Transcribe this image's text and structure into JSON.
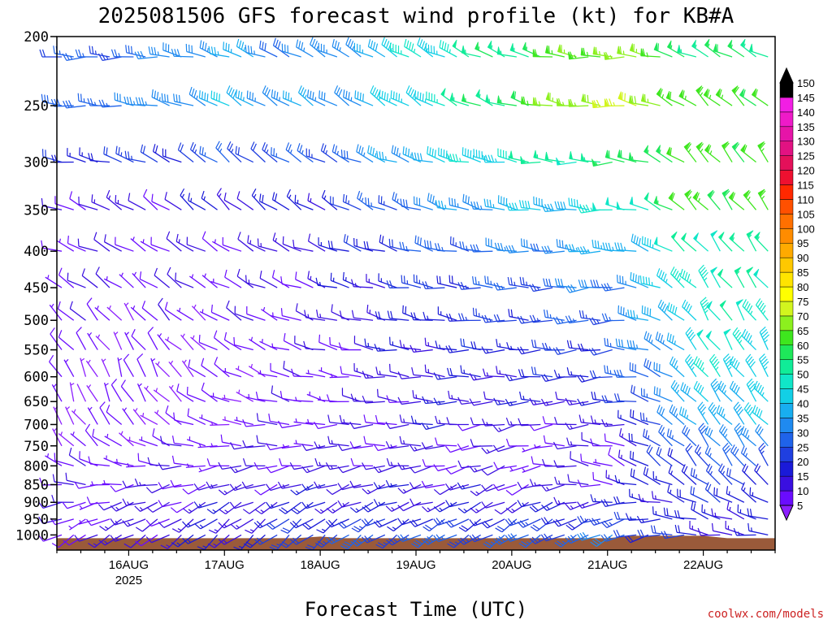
{
  "chart_data": {
    "type": "wind-barb-time-height",
    "title": "2025081506 GFS forecast wind profile (kt) for KB#A",
    "xlabel": "Forecast Time (UTC)",
    "ylabel": "",
    "credit": "coolwx.com/models",
    "x_ticks": [
      {
        "label": "16AUG",
        "sub": "2025",
        "hours": 18
      },
      {
        "label": "17AUG",
        "sub": "",
        "hours": 42
      },
      {
        "label": "18AUG",
        "sub": "",
        "hours": 66
      },
      {
        "label": "19AUG",
        "sub": "",
        "hours": 90
      },
      {
        "label": "20AUG",
        "sub": "",
        "hours": 114
      },
      {
        "label": "21AUG",
        "sub": "",
        "hours": 138
      },
      {
        "label": "22AUG",
        "sub": "",
        "hours": 162
      }
    ],
    "x_range_hours": [
      0,
      180
    ],
    "x_step_hours": 3,
    "pressure_levels": [
      200,
      250,
      300,
      350,
      400,
      450,
      500,
      550,
      600,
      650,
      700,
      750,
      800,
      850,
      900,
      950,
      1000
    ],
    "y_axis": {
      "scale": "log",
      "top": 200,
      "bottom": 1050,
      "reversed": true
    },
    "colorbar": {
      "levels": [
        5,
        10,
        15,
        20,
        25,
        30,
        35,
        40,
        45,
        50,
        55,
        60,
        65,
        70,
        75,
        80,
        85,
        90,
        95,
        100,
        105,
        110,
        115,
        120,
        125,
        130,
        135,
        140,
        145,
        150
      ],
      "colors": [
        "#8c1fff",
        "#6a0cff",
        "#3a0fe0",
        "#1a1ad8",
        "#1f3fe0",
        "#1f63ea",
        "#1f8af0",
        "#18aef0",
        "#12cfe6",
        "#10e6c8",
        "#10ec98",
        "#1ee85a",
        "#3ee61e",
        "#8cf01e",
        "#d2f51e",
        "#ffff00",
        "#ffe400",
        "#ffc800",
        "#ffaa00",
        "#ff8c00",
        "#ff7000",
        "#ff5000",
        "#ff2800",
        "#ee1030",
        "#e4105a",
        "#e21282",
        "#e614a8",
        "#ee1ac8",
        "#f21ee4",
        "#000000"
      ]
    },
    "wind_profile": [
      {
        "day": "15AUG-06",
        "speeds": [
          22,
          25,
          18,
          12,
          10,
          9,
          8,
          7,
          6,
          5,
          6,
          6,
          7,
          8,
          9,
          9,
          10
        ],
        "dirs": [
          270,
          270,
          280,
          290,
          290,
          300,
          310,
          320,
          330,
          340,
          330,
          320,
          300,
          280,
          260,
          250,
          240
        ]
      },
      {
        "day": "16AUG",
        "speeds": [
          28,
          30,
          20,
          12,
          9,
          8,
          7,
          6,
          6,
          6,
          6,
          7,
          8,
          10,
          11,
          11,
          12
        ],
        "dirs": [
          270,
          275,
          290,
          300,
          300,
          310,
          320,
          330,
          340,
          330,
          320,
          300,
          280,
          260,
          250,
          245,
          240
        ]
      },
      {
        "day": "17AUG",
        "speeds": [
          35,
          38,
          24,
          14,
          10,
          9,
          8,
          7,
          7,
          7,
          7,
          8,
          9,
          11,
          13,
          14,
          15
        ],
        "dirs": [
          290,
          300,
          310,
          310,
          300,
          300,
          300,
          300,
          300,
          290,
          280,
          270,
          260,
          250,
          240,
          235,
          230
        ]
      },
      {
        "day": "18AUG",
        "speeds": [
          30,
          32,
          24,
          17,
          14,
          12,
          10,
          9,
          8,
          8,
          9,
          10,
          12,
          14,
          16,
          20,
          24
        ],
        "dirs": [
          300,
          300,
          300,
          300,
          290,
          290,
          285,
          285,
          280,
          280,
          270,
          265,
          260,
          250,
          240,
          235,
          230
        ]
      },
      {
        "day": "19AUG",
        "speeds": [
          45,
          45,
          38,
          30,
          25,
          20,
          18,
          16,
          14,
          13,
          13,
          12,
          12,
          13,
          15,
          20,
          26
        ],
        "dirs": [
          300,
          300,
          290,
          290,
          285,
          280,
          280,
          275,
          275,
          270,
          270,
          265,
          260,
          255,
          250,
          245,
          240
        ]
      },
      {
        "day": "20AUG",
        "speeds": [
          55,
          58,
          48,
          38,
          30,
          25,
          22,
          18,
          16,
          14,
          12,
          10,
          10,
          12,
          14,
          20,
          26
        ],
        "dirs": [
          290,
          285,
          280,
          280,
          275,
          275,
          270,
          270,
          270,
          265,
          260,
          255,
          250,
          245,
          240,
          240,
          240
        ]
      },
      {
        "day": "21AUG",
        "speeds": [
          68,
          72,
          55,
          45,
          35,
          30,
          26,
          22,
          20,
          16,
          12,
          10,
          9,
          12,
          16,
          22,
          28
        ],
        "dirs": [
          270,
          270,
          270,
          270,
          270,
          265,
          265,
          265,
          265,
          265,
          270,
          280,
          290,
          280,
          260,
          250,
          245
        ]
      },
      {
        "day": "22AUG",
        "speeds": [
          55,
          62,
          62,
          62,
          52,
          50,
          48,
          46,
          44,
          40,
          38,
          32,
          26,
          22,
          18,
          16,
          14
        ],
        "dirs": [
          300,
          310,
          320,
          320,
          320,
          325,
          325,
          325,
          325,
          320,
          320,
          320,
          320,
          310,
          300,
          290,
          280
        ]
      }
    ]
  }
}
